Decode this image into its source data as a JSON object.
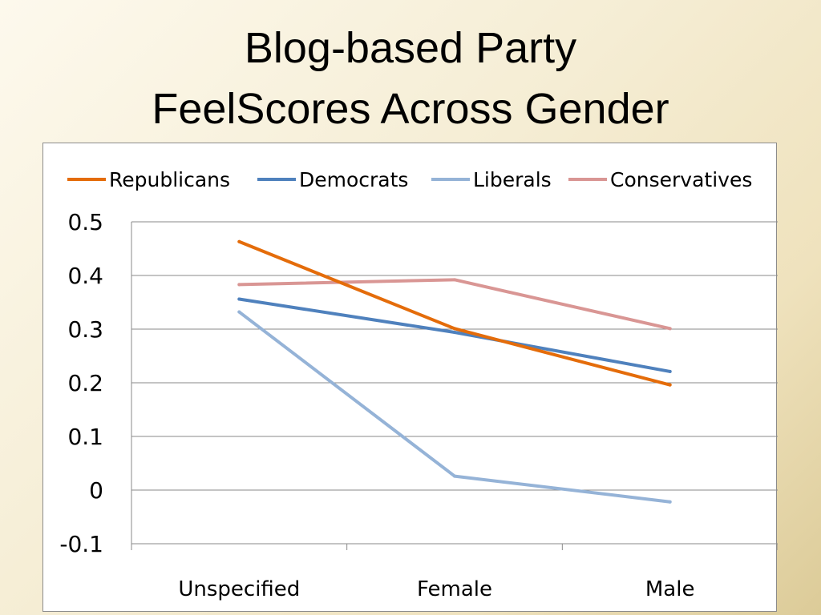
{
  "slide": {
    "title_line1": "Blog-based Party",
    "title_line2": "FeelScores Across Gender"
  },
  "chart_data": {
    "type": "line",
    "title": "",
    "xlabel": "",
    "ylabel": "",
    "categories": [
      "Unspecified",
      "Female",
      "Male"
    ],
    "ylim": [
      -0.1,
      0.5
    ],
    "yticks": [
      0.5,
      0.4,
      0.3,
      0.2,
      0.1,
      0,
      -0.1
    ],
    "ytick_labels": [
      "0.5",
      "0.4",
      "0.3",
      "0.2",
      "0.1",
      "0",
      "-0.1"
    ],
    "grid": true,
    "legend_position": "top",
    "series": [
      {
        "name": "Republicans",
        "color": "#e46c0a",
        "values": [
          0.463,
          0.301,
          0.196
        ]
      },
      {
        "name": "Democrats",
        "color": "#4f81bd",
        "values": [
          0.356,
          0.294,
          0.221
        ]
      },
      {
        "name": "Liberals",
        "color": "#95b3d7",
        "values": [
          0.332,
          0.026,
          -0.022
        ]
      },
      {
        "name": "Conservatives",
        "color": "#d99694",
        "values": [
          0.383,
          0.392,
          0.301
        ]
      }
    ]
  }
}
